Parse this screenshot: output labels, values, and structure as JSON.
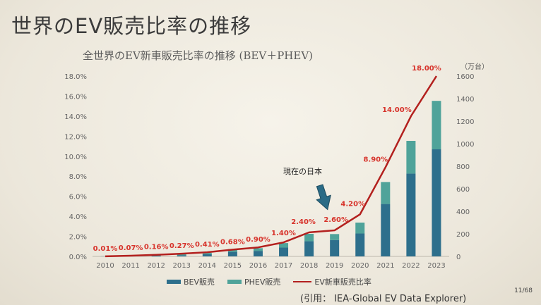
{
  "slide": {
    "title": "世界のEV販売比率の推移",
    "page_number": "11/68",
    "citation": "(引用： IEA-Global EV Data Explorer)"
  },
  "chart_data": {
    "type": "bar",
    "title": "全世界のEV新車販売比率の推移 (BEV＋PHEV)",
    "right_axis_unit": "（万台）",
    "categories": [
      "2010",
      "2011",
      "2012",
      "2013",
      "2014",
      "2015",
      "2016",
      "2017",
      "2018",
      "2019",
      "2020",
      "2021",
      "2022",
      "2023"
    ],
    "series": [
      {
        "name": "BEV販売",
        "kind": "bar-stacked",
        "color": "#2d6f8c",
        "axis": "right",
        "values": [
          1,
          4,
          6,
          10,
          20,
          40,
          49,
          78,
          135,
          145,
          203,
          465,
          735,
          950
        ]
      },
      {
        "name": "PHEV販売",
        "kind": "bar-stacked",
        "color": "#4fa39a",
        "axis": "right",
        "values": [
          1,
          2,
          6,
          10,
          12,
          25,
          24,
          40,
          65,
          53,
          97,
          195,
          290,
          430
        ]
      },
      {
        "name": "EV新車販売比率",
        "kind": "line",
        "color": "#b3201e",
        "axis": "left",
        "values": [
          0.01,
          0.07,
          0.16,
          0.27,
          0.41,
          0.68,
          0.9,
          1.4,
          2.4,
          2.6,
          4.2,
          8.9,
          14.0,
          18.0
        ],
        "labels": [
          "0.01%",
          "0.07%",
          "0.16%",
          "0.27%",
          "0.41%",
          "0.68%",
          "0.90%",
          "1.40%",
          "2.40%",
          "2.60%",
          "4.20%",
          "8.90%",
          "14.00%",
          "18.00%"
        ]
      }
    ],
    "left_axis": {
      "ylim": [
        0,
        18
      ],
      "ticks": [
        "0.0%",
        "2.0%",
        "4.0%",
        "6.0%",
        "8.0%",
        "10.0%",
        "12.0%",
        "14.0%",
        "16.0%",
        "18.0%"
      ]
    },
    "right_axis": {
      "ylim": [
        0,
        1600
      ],
      "ticks": [
        "0",
        "200",
        "400",
        "600",
        "800",
        "1000",
        "1200",
        "1400",
        "1600"
      ]
    },
    "annotation": {
      "text": "現在の日本",
      "points_to": "2019"
    },
    "legend": {
      "placement": "bottom"
    }
  }
}
